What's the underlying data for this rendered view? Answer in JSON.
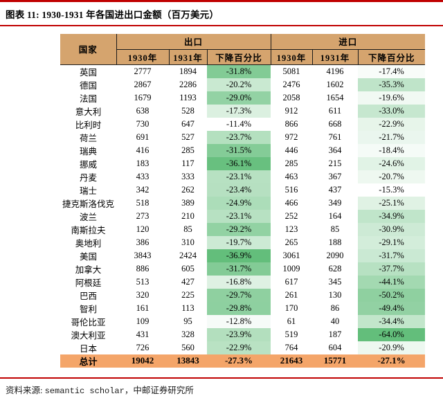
{
  "title": "图表 11: 1930-1931 年各国进出口金额（百万美元）",
  "footer": {
    "label": "资料来源: ",
    "source_en": "semantic scholar",
    "separator": "，",
    "source_cn": "中邮证券研究所"
  },
  "colors": {
    "accent_red": "#C00000",
    "header_bg": "#D5A46E",
    "total_bg": "#F4A569",
    "scale_min_color": "#FFFFFF",
    "scale_max_color": "#63BE7B"
  },
  "chart_data": {
    "type": "table",
    "title": "图表 11: 1930-1931 年各国进出口金额（百万美元）",
    "header": {
      "country": "国家",
      "export_group": "出口",
      "import_group": "进口",
      "sub_columns": [
        "1930年",
        "1931年",
        "下降百分比"
      ]
    },
    "rows": [
      {
        "country": "英国",
        "export_1930": 2777,
        "export_1931": 1894,
        "export_pct": -31.8,
        "import_1930": 5081,
        "import_1931": 4196,
        "import_pct": -17.4
      },
      {
        "country": "德国",
        "export_1930": 2867,
        "export_1931": 2286,
        "export_pct": -20.2,
        "import_1930": 2476,
        "import_1931": 1602,
        "import_pct": -35.3
      },
      {
        "country": "法国",
        "export_1930": 1679,
        "export_1931": 1193,
        "export_pct": -29.0,
        "import_1930": 2058,
        "import_1931": 1654,
        "import_pct": -19.6
      },
      {
        "country": "意大利",
        "export_1930": 638,
        "export_1931": 528,
        "export_pct": -17.3,
        "import_1930": 912,
        "import_1931": 611,
        "import_pct": -33.0
      },
      {
        "country": "比利时",
        "export_1930": 730,
        "export_1931": 647,
        "export_pct": -11.4,
        "import_1930": 866,
        "import_1931": 668,
        "import_pct": -22.9
      },
      {
        "country": "荷兰",
        "export_1930": 691,
        "export_1931": 527,
        "export_pct": -23.7,
        "import_1930": 972,
        "import_1931": 761,
        "import_pct": -21.7
      },
      {
        "country": "瑞典",
        "export_1930": 416,
        "export_1931": 285,
        "export_pct": -31.5,
        "import_1930": 446,
        "import_1931": 364,
        "import_pct": -18.4
      },
      {
        "country": "挪威",
        "export_1930": 183,
        "export_1931": 117,
        "export_pct": -36.1,
        "import_1930": 285,
        "import_1931": 215,
        "import_pct": -24.6
      },
      {
        "country": "丹麦",
        "export_1930": 433,
        "export_1931": 333,
        "export_pct": -23.1,
        "import_1930": 463,
        "import_1931": 367,
        "import_pct": -20.7
      },
      {
        "country": "瑞士",
        "export_1930": 342,
        "export_1931": 262,
        "export_pct": -23.4,
        "import_1930": 516,
        "import_1931": 437,
        "import_pct": -15.3
      },
      {
        "country": "捷克斯洛伐克",
        "export_1930": 518,
        "export_1931": 389,
        "export_pct": -24.9,
        "import_1930": 466,
        "import_1931": 349,
        "import_pct": -25.1
      },
      {
        "country": "波兰",
        "export_1930": 273,
        "export_1931": 210,
        "export_pct": -23.1,
        "import_1930": 252,
        "import_1931": 164,
        "import_pct": -34.9
      },
      {
        "country": "南斯拉夫",
        "export_1930": 120,
        "export_1931": 85,
        "export_pct": -29.2,
        "import_1930": 123,
        "import_1931": 85,
        "import_pct": -30.9
      },
      {
        "country": "奥地利",
        "export_1930": 386,
        "export_1931": 310,
        "export_pct": -19.7,
        "import_1930": 265,
        "import_1931": 188,
        "import_pct": -29.1
      },
      {
        "country": "美国",
        "export_1930": 3843,
        "export_1931": 2424,
        "export_pct": -36.9,
        "import_1930": 3061,
        "import_1931": 2090,
        "import_pct": -31.7
      },
      {
        "country": "加拿大",
        "export_1930": 886,
        "export_1931": 605,
        "export_pct": -31.7,
        "import_1930": 1009,
        "import_1931": 628,
        "import_pct": -37.7
      },
      {
        "country": "阿根廷",
        "export_1930": 513,
        "export_1931": 427,
        "export_pct": -16.8,
        "import_1930": 617,
        "import_1931": 345,
        "import_pct": -44.1
      },
      {
        "country": "巴西",
        "export_1930": 320,
        "export_1931": 225,
        "export_pct": -29.7,
        "import_1930": 261,
        "import_1931": 130,
        "import_pct": -50.2
      },
      {
        "country": "智利",
        "export_1930": 161,
        "export_1931": 113,
        "export_pct": -29.8,
        "import_1930": 170,
        "import_1931": 86,
        "import_pct": -49.4
      },
      {
        "country": "哥伦比亚",
        "export_1930": 109,
        "export_1931": 95,
        "export_pct": -12.8,
        "import_1930": 61,
        "import_1931": 40,
        "import_pct": -34.4
      },
      {
        "country": "澳大利亚",
        "export_1930": 431,
        "export_1931": 328,
        "export_pct": -23.9,
        "import_1930": 519,
        "import_1931": 187,
        "import_pct": -64.0
      },
      {
        "country": "日本",
        "export_1930": 726,
        "export_1931": 560,
        "export_pct": -22.9,
        "import_1930": 764,
        "import_1931": 604,
        "import_pct": -20.9
      }
    ],
    "total_row": {
      "country": "总计",
      "export_1930": 19042,
      "export_1931": 13843,
      "export_pct": -27.3,
      "import_1930": 21643,
      "import_1931": 15771,
      "import_pct": -27.1
    },
    "color_scale_note": "percent cells shaded white-to-green per column by decline magnitude",
    "pct_format": "one decimal with % sign"
  }
}
